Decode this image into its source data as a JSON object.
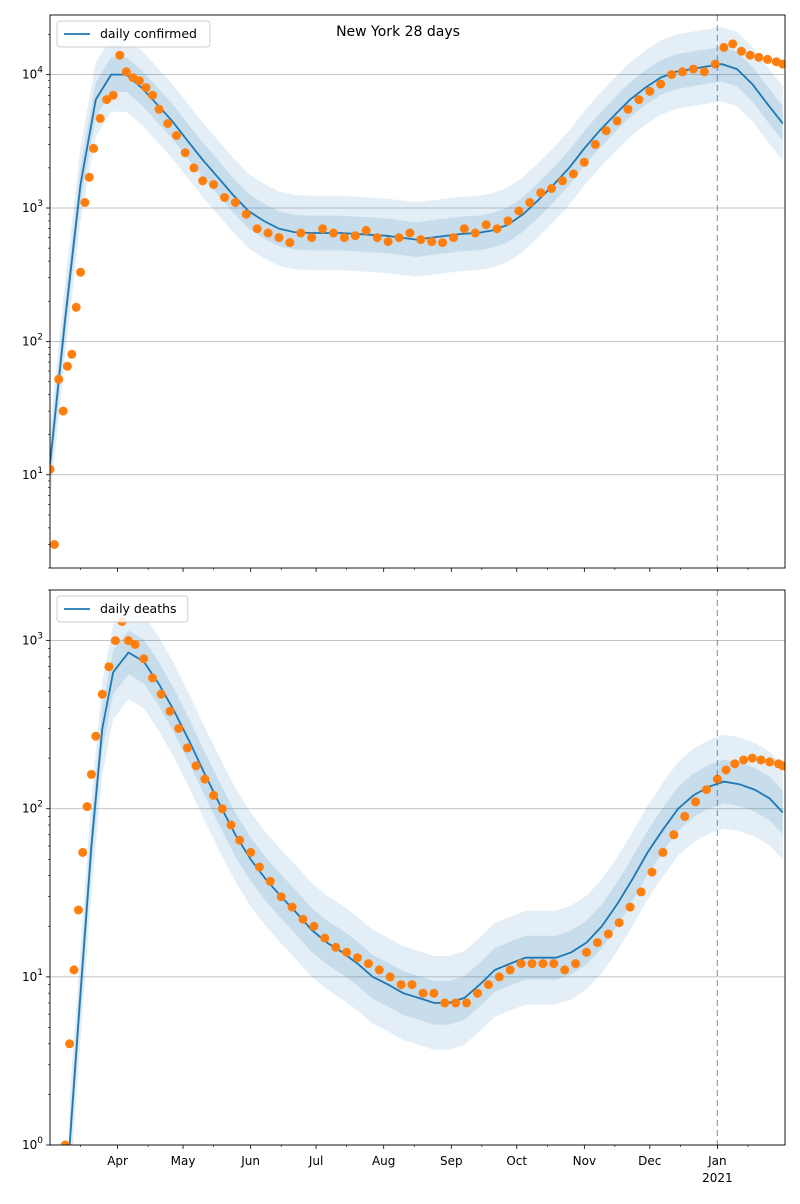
{
  "figure": {
    "title": "New York 28 days"
  },
  "colors": {
    "model": "#1f77b4",
    "observed": "#ff7f0e",
    "grid": "#b0b0b0",
    "vline": "#1f77b4",
    "band": "#1f77b4"
  },
  "chart_data": [
    {
      "type": "line",
      "title": "New York 28 days",
      "xlabel": "",
      "ylabel": "",
      "yscale": "log",
      "ylim": [
        2,
        28000
      ],
      "y_ticks": [
        10,
        100,
        1000,
        10000
      ],
      "y_tick_labels": [
        "10^1",
        "10^2",
        "10^3",
        "10^4"
      ],
      "legend": "top-left",
      "grid": "horizontal",
      "x_ticks": [
        "Apr",
        "May",
        "Jun",
        "Jul",
        "Aug",
        "Sep",
        "Oct",
        "Nov",
        "Dec",
        "Jan"
      ],
      "x_year_label": "2021",
      "vline_date": "2021-01-01",
      "series": [
        {
          "name": "daily confirmed",
          "kind": "line",
          "x": [
            "2020-03-01",
            "2020-03-08",
            "2020-03-15",
            "2020-03-22",
            "2020-03-29",
            "2020-04-05",
            "2020-04-12",
            "2020-04-19",
            "2020-04-26",
            "2020-05-03",
            "2020-05-10",
            "2020-05-17",
            "2020-05-24",
            "2020-05-31",
            "2020-06-07",
            "2020-06-14",
            "2020-06-21",
            "2020-06-28",
            "2020-07-05",
            "2020-07-12",
            "2020-07-19",
            "2020-07-26",
            "2020-08-02",
            "2020-08-09",
            "2020-08-16",
            "2020-08-23",
            "2020-08-30",
            "2020-09-06",
            "2020-09-13",
            "2020-09-20",
            "2020-09-27",
            "2020-10-04",
            "2020-10-11",
            "2020-10-18",
            "2020-10-25",
            "2020-11-01",
            "2020-11-08",
            "2020-11-15",
            "2020-11-22",
            "2020-11-29",
            "2020-12-06",
            "2020-12-13",
            "2020-12-20",
            "2020-12-27",
            "2021-01-03",
            "2021-01-10",
            "2021-01-17",
            "2021-01-24",
            "2021-01-31"
          ],
          "y": [
            12,
            150,
            1500,
            6500,
            10000,
            10000,
            8000,
            6000,
            4500,
            3200,
            2300,
            1700,
            1250,
            950,
            800,
            700,
            660,
            650,
            650,
            650,
            640,
            630,
            620,
            600,
            580,
            600,
            620,
            640,
            650,
            680,
            750,
            900,
            1150,
            1500,
            2000,
            2800,
            3800,
            5000,
            6500,
            8000,
            9500,
            10500,
            11000,
            11500,
            12000,
            11000,
            8500,
            6000,
            4300
          ]
        },
        {
          "name": "",
          "kind": "scatter",
          "x": [
            "2020-03-01",
            "2020-03-03",
            "2020-03-05",
            "2020-03-07",
            "2020-03-09",
            "2020-03-11",
            "2020-03-13",
            "2020-03-15",
            "2020-03-17",
            "2020-03-19",
            "2020-03-21",
            "2020-03-24",
            "2020-03-27",
            "2020-03-30",
            "2020-04-02",
            "2020-04-05",
            "2020-04-08",
            "2020-04-11",
            "2020-04-14",
            "2020-04-17",
            "2020-04-20",
            "2020-04-24",
            "2020-04-28",
            "2020-05-02",
            "2020-05-06",
            "2020-05-10",
            "2020-05-15",
            "2020-05-20",
            "2020-05-25",
            "2020-05-30",
            "2020-06-04",
            "2020-06-09",
            "2020-06-14",
            "2020-06-19",
            "2020-06-24",
            "2020-06-29",
            "2020-07-04",
            "2020-07-09",
            "2020-07-14",
            "2020-07-19",
            "2020-07-24",
            "2020-07-29",
            "2020-08-03",
            "2020-08-08",
            "2020-08-13",
            "2020-08-18",
            "2020-08-23",
            "2020-08-28",
            "2020-09-02",
            "2020-09-07",
            "2020-09-12",
            "2020-09-17",
            "2020-09-22",
            "2020-09-27",
            "2020-10-02",
            "2020-10-07",
            "2020-10-12",
            "2020-10-17",
            "2020-10-22",
            "2020-10-27",
            "2020-11-01",
            "2020-11-06",
            "2020-11-11",
            "2020-11-16",
            "2020-11-21",
            "2020-11-26",
            "2020-12-01",
            "2020-12-06",
            "2020-12-11",
            "2020-12-16",
            "2020-12-21",
            "2020-12-26",
            "2020-12-31",
            "2021-01-04",
            "2021-01-08",
            "2021-01-12",
            "2021-01-16",
            "2021-01-20",
            "2021-01-24",
            "2021-01-28",
            "2021-01-31"
          ],
          "y": [
            11,
            3,
            52,
            30,
            65,
            80,
            180,
            330,
            1100,
            1700,
            2800,
            4700,
            6500,
            7000,
            14000,
            10500,
            9500,
            9000,
            8000,
            7000,
            5500,
            4300,
            3500,
            2600,
            2000,
            1600,
            1500,
            1200,
            1100,
            900,
            700,
            650,
            600,
            550,
            650,
            600,
            700,
            650,
            600,
            620,
            680,
            600,
            560,
            600,
            650,
            580,
            560,
            550,
            600,
            700,
            650,
            750,
            700,
            800,
            950,
            1100,
            1300,
            1400,
            1600,
            1800,
            2200,
            3000,
            3800,
            4500,
            5500,
            6500,
            7500,
            8500,
            10000,
            10500,
            11000,
            10500,
            12000,
            16000,
            17000,
            15000,
            14000,
            13500,
            13000,
            12500,
            12000
          ]
        }
      ]
    },
    {
      "type": "line",
      "title": "",
      "xlabel": "",
      "ylabel": "",
      "yscale": "log",
      "ylim": [
        1,
        2000
      ],
      "y_ticks": [
        1,
        10,
        100,
        1000
      ],
      "y_tick_labels": [
        "10^0",
        "10^1",
        "10^2",
        "10^3"
      ],
      "legend": "top-left",
      "grid": "horizontal",
      "x_ticks": [
        "Apr",
        "May",
        "Jun",
        "Jul",
        "Aug",
        "Sep",
        "Oct",
        "Nov",
        "Dec",
        "Jan"
      ],
      "x_year_label": "2021",
      "vline_date": "2021-01-01",
      "series": [
        {
          "name": "daily deaths",
          "kind": "line",
          "x": [
            "2020-03-10",
            "2020-03-15",
            "2020-03-20",
            "2020-03-25",
            "2020-03-30",
            "2020-04-06",
            "2020-04-13",
            "2020-04-20",
            "2020-04-27",
            "2020-05-04",
            "2020-05-11",
            "2020-05-18",
            "2020-05-25",
            "2020-06-01",
            "2020-06-08",
            "2020-06-15",
            "2020-06-22",
            "2020-06-29",
            "2020-07-06",
            "2020-07-13",
            "2020-07-20",
            "2020-07-27",
            "2020-08-03",
            "2020-08-10",
            "2020-08-17",
            "2020-08-24",
            "2020-08-31",
            "2020-09-07",
            "2020-09-14",
            "2020-09-21",
            "2020-09-28",
            "2020-10-05",
            "2020-10-12",
            "2020-10-19",
            "2020-10-26",
            "2020-11-02",
            "2020-11-09",
            "2020-11-16",
            "2020-11-23",
            "2020-11-30",
            "2020-12-07",
            "2020-12-14",
            "2020-12-21",
            "2020-12-28",
            "2021-01-04",
            "2021-01-11",
            "2021-01-18",
            "2021-01-25",
            "2021-01-31"
          ],
          "y": [
            1,
            8,
            60,
            300,
            650,
            850,
            750,
            550,
            380,
            250,
            160,
            105,
            70,
            50,
            38,
            30,
            24,
            19,
            16,
            14,
            12,
            10,
            9,
            8,
            7.5,
            7,
            7,
            7.5,
            9,
            11,
            12,
            13,
            13,
            13,
            14,
            16,
            20,
            27,
            38,
            55,
            75,
            100,
            120,
            135,
            145,
            140,
            130,
            115,
            95
          ]
        },
        {
          "name": "",
          "kind": "scatter",
          "x": [
            "2020-03-08",
            "2020-03-10",
            "2020-03-12",
            "2020-03-14",
            "2020-03-16",
            "2020-03-18",
            "2020-03-20",
            "2020-03-22",
            "2020-03-25",
            "2020-03-28",
            "2020-03-31",
            "2020-04-03",
            "2020-04-06",
            "2020-04-09",
            "2020-04-13",
            "2020-04-17",
            "2020-04-21",
            "2020-04-25",
            "2020-04-29",
            "2020-05-03",
            "2020-05-07",
            "2020-05-11",
            "2020-05-15",
            "2020-05-19",
            "2020-05-23",
            "2020-05-27",
            "2020-06-01",
            "2020-06-05",
            "2020-06-10",
            "2020-06-15",
            "2020-06-20",
            "2020-06-25",
            "2020-06-30",
            "2020-07-05",
            "2020-07-10",
            "2020-07-15",
            "2020-07-20",
            "2020-07-25",
            "2020-07-30",
            "2020-08-04",
            "2020-08-09",
            "2020-08-14",
            "2020-08-19",
            "2020-08-24",
            "2020-08-29",
            "2020-09-03",
            "2020-09-08",
            "2020-09-13",
            "2020-09-18",
            "2020-09-23",
            "2020-09-28",
            "2020-10-03",
            "2020-10-08",
            "2020-10-13",
            "2020-10-18",
            "2020-10-23",
            "2020-10-28",
            "2020-11-02",
            "2020-11-07",
            "2020-11-12",
            "2020-11-17",
            "2020-11-22",
            "2020-11-27",
            "2020-12-02",
            "2020-12-07",
            "2020-12-12",
            "2020-12-17",
            "2020-12-22",
            "2020-12-27",
            "2021-01-01",
            "2021-01-05",
            "2021-01-09",
            "2021-01-13",
            "2021-01-17",
            "2021-01-21",
            "2021-01-25",
            "2021-01-29",
            "2021-01-31"
          ],
          "y": [
            1,
            4,
            11,
            25,
            55,
            103,
            160,
            270,
            480,
            700,
            1000,
            1300,
            1000,
            950,
            780,
            600,
            480,
            380,
            300,
            230,
            180,
            150,
            120,
            100,
            80,
            65,
            55,
            45,
            37,
            30,
            26,
            22,
            20,
            17,
            15,
            14,
            13,
            12,
            11,
            10,
            9,
            9,
            8,
            8,
            7,
            7,
            7,
            8,
            9,
            10,
            11,
            12,
            12,
            12,
            12,
            11,
            12,
            14,
            16,
            18,
            21,
            26,
            32,
            42,
            55,
            70,
            90,
            110,
            130,
            150,
            170,
            185,
            195,
            200,
            195,
            190,
            185,
            180
          ]
        }
      ]
    }
  ]
}
